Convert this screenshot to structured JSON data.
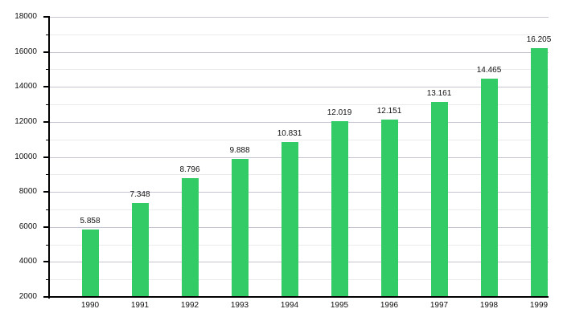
{
  "chart": {
    "title": "",
    "background": "#ffffff"
  },
  "chart_data": {
    "type": "bar",
    "categories": [
      "1990",
      "1991",
      "1992",
      "1993",
      "1994",
      "1995",
      "1996",
      "1997",
      "1998",
      "1999"
    ],
    "values": [
      5858,
      7348,
      8796,
      9888,
      10831,
      12019,
      12151,
      13161,
      14465,
      16205
    ],
    "value_labels": [
      "5.858",
      "7.348",
      "8.796",
      "9.888",
      "10.831",
      "12.019",
      "12.151",
      "13.161",
      "14.465",
      "16.205"
    ],
    "title": "",
    "xlabel": "",
    "ylabel": "",
    "ylim": [
      2000,
      18000
    ],
    "y_major_step": 2000,
    "y_minor_step": 1000,
    "y_tick_labels": [
      "2000",
      "4000",
      "6000",
      "8000",
      "10000",
      "12000",
      "14000",
      "16000",
      "18000"
    ],
    "grid": true,
    "legend": false,
    "colors": {
      "bar": "#33cb65",
      "grid_major": "#c4c4d2",
      "grid_minor": "#ebebeb",
      "axis": "#000000",
      "text": "#111111"
    }
  }
}
